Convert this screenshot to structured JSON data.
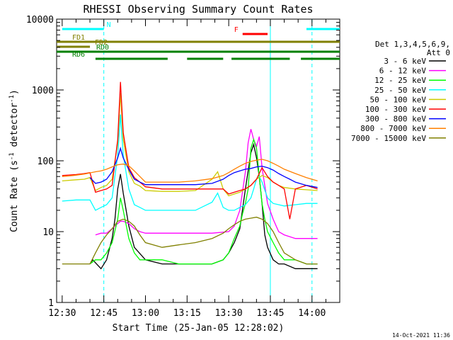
{
  "chart_data": {
    "type": "line",
    "title": "RHESSI Observing Summary Count Rates",
    "xlabel": "Start Time (25-Jan-05 12:28:02)",
    "ylabel": "Count Rate (s",
    "ylabel_sup": "-1",
    "ylabel_mid": " detector",
    "ylabel_end": ")",
    "yscale": "log",
    "ylim": [
      1,
      10000
    ],
    "xlim_minutes": [
      -2,
      100
    ],
    "x_ticks": [
      {
        "label": "12:30",
        "min": 0
      },
      {
        "label": "12:45",
        "min": 15
      },
      {
        "label": "13:00",
        "min": 30
      },
      {
        "label": "13:15",
        "min": 45
      },
      {
        "label": "13:30",
        "min": 60
      },
      {
        "label": "13:45",
        "min": 75
      },
      {
        "label": "14:00",
        "min": 90
      }
    ],
    "y_ticks": [
      {
        "label": "1",
        "value": 1
      },
      {
        "label": "10",
        "value": 10
      },
      {
        "label": "100",
        "value": 100
      },
      {
        "label": "1000",
        "value": 1000
      },
      {
        "label": "10000",
        "value": 10000
      }
    ],
    "legend_title": [
      "Det 1,3,4,5,6,9,",
      "Att 0"
    ],
    "legend_position": "right",
    "series": [
      {
        "name": "3 - 6 keV",
        "color": "#000000",
        "x": [
          10,
          11,
          14,
          16,
          18,
          19,
          20,
          21,
          22,
          24,
          26,
          30,
          36,
          42,
          48,
          54,
          58,
          60,
          62,
          64,
          66,
          68,
          69,
          70,
          71,
          72,
          73,
          74,
          76,
          78,
          80,
          84,
          88,
          92
        ],
        "y": [
          3.5,
          4,
          3,
          4,
          8,
          15,
          40,
          65,
          35,
          12,
          6,
          4,
          3.5,
          3.5,
          3.5,
          3.5,
          4,
          5,
          7,
          11,
          40,
          130,
          170,
          110,
          60,
          25,
          9,
          6,
          4,
          3.5,
          3.5,
          3,
          3,
          3
        ]
      },
      {
        "name": "6 - 12 keV",
        "color": "#ff00ff",
        "x": [
          12,
          14,
          16,
          18,
          20,
          21,
          22,
          24,
          26,
          28,
          30,
          36,
          42,
          48,
          54,
          60,
          62,
          64,
          66,
          67,
          68,
          69,
          70,
          71,
          72,
          74,
          76,
          78,
          80,
          84,
          88,
          92
        ],
        "y": [
          9,
          9.5,
          9.5,
          11,
          13,
          14,
          14,
          13,
          11,
          10,
          9.5,
          9.5,
          9.5,
          9.5,
          9.5,
          10,
          12,
          20,
          70,
          180,
          280,
          200,
          160,
          220,
          80,
          25,
          15,
          10,
          9,
          8,
          8,
          8
        ]
      },
      {
        "name": "12 - 25 keV",
        "color": "#00ff00",
        "x": [
          10,
          12,
          14,
          16,
          18,
          20,
          21,
          22,
          24,
          26,
          28,
          30,
          36,
          42,
          48,
          54,
          58,
          60,
          62,
          64,
          65,
          66,
          67,
          68,
          69,
          70,
          71,
          72,
          73,
          74,
          76,
          78,
          80,
          84,
          88,
          92
        ],
        "y": [
          3.5,
          4,
          4,
          5,
          7,
          15,
          30,
          20,
          8,
          5,
          4,
          4,
          4,
          3.5,
          3.5,
          3.5,
          4,
          5,
          8,
          12,
          18,
          25,
          40,
          150,
          200,
          150,
          60,
          25,
          15,
          10,
          7,
          5,
          4,
          4,
          3.5,
          3.5
        ]
      },
      {
        "name": "25 - 50 keV",
        "color": "#00ffff",
        "x": [
          0,
          5,
          8,
          10,
          12,
          14,
          16,
          18,
          20,
          21,
          22,
          24,
          26,
          28,
          30,
          36,
          42,
          48,
          54,
          56,
          58,
          60,
          62,
          64,
          66,
          68,
          69,
          70,
          71,
          72,
          74,
          76,
          78,
          80,
          84,
          88,
          92
        ],
        "y": [
          27,
          28,
          28,
          28,
          20,
          22,
          24,
          30,
          120,
          450,
          120,
          40,
          24,
          22,
          20,
          20,
          20,
          20,
          26,
          35,
          22,
          20,
          20,
          22,
          24,
          30,
          40,
          55,
          60,
          50,
          30,
          25,
          24,
          23,
          24,
          25,
          25
        ]
      },
      {
        "name": "50 - 100 keV",
        "color": "#cccc00",
        "x": [
          0,
          5,
          8,
          10,
          12,
          14,
          16,
          18,
          20,
          21,
          22,
          24,
          26,
          28,
          30,
          36,
          42,
          48,
          54,
          56,
          58,
          60,
          62,
          64,
          66,
          68,
          70,
          72,
          74,
          76,
          78,
          80,
          84,
          88,
          92
        ],
        "y": [
          52,
          54,
          55,
          58,
          38,
          42,
          45,
          55,
          180,
          900,
          200,
          70,
          48,
          44,
          38,
          37,
          37,
          38,
          55,
          70,
          40,
          32,
          34,
          36,
          40,
          45,
          55,
          62,
          58,
          50,
          45,
          42,
          40,
          39,
          38
        ]
      },
      {
        "name": "100 - 300 keV",
        "color": "#ff0000",
        "x": [
          0,
          5,
          8,
          10,
          12,
          14,
          16,
          18,
          20,
          21,
          22,
          24,
          26,
          28,
          30,
          36,
          42,
          48,
          54,
          56,
          58,
          60,
          62,
          64,
          66,
          68,
          70,
          72,
          74,
          76,
          78,
          80,
          82,
          84,
          88,
          92
        ],
        "y": [
          62,
          64,
          66,
          68,
          36,
          38,
          40,
          45,
          200,
          1300,
          250,
          80,
          58,
          50,
          43,
          40,
          40,
          40,
          40,
          40,
          40,
          34,
          36,
          38,
          40,
          45,
          55,
          80,
          60,
          50,
          45,
          40,
          15,
          40,
          45,
          40
        ]
      },
      {
        "name": "300 - 800 keV",
        "color": "#0000ff",
        "x": [
          10,
          12,
          14,
          16,
          18,
          20,
          21,
          22,
          24,
          26,
          28,
          30,
          36,
          42,
          48,
          54,
          58,
          60,
          62,
          64,
          66,
          68,
          70,
          72,
          74,
          76,
          78,
          80,
          82,
          84,
          88,
          92
        ],
        "y": [
          58,
          48,
          50,
          55,
          70,
          110,
          150,
          110,
          75,
          55,
          50,
          46,
          46,
          46,
          46,
          48,
          55,
          62,
          68,
          72,
          76,
          78,
          82,
          84,
          80,
          74,
          66,
          60,
          55,
          50,
          45,
          42
        ]
      },
      {
        "name": "800 - 7000 keV",
        "color": "#ff8000",
        "x": [
          0,
          4,
          8,
          12,
          14,
          16,
          18,
          20,
          22,
          24,
          26,
          28,
          30,
          36,
          42,
          48,
          54,
          58,
          60,
          62,
          64,
          66,
          68,
          70,
          72,
          74,
          76,
          78,
          80,
          84,
          88,
          92
        ],
        "y": [
          60,
          62,
          65,
          70,
          72,
          76,
          82,
          88,
          90,
          85,
          72,
          60,
          50,
          50,
          50,
          52,
          56,
          62,
          68,
          76,
          84,
          92,
          98,
          102,
          105,
          100,
          92,
          84,
          76,
          66,
          58,
          52
        ]
      },
      {
        "name": "7000 - 15000 keV",
        "color": "#808000",
        "x": [
          0,
          4,
          8,
          10,
          12,
          14,
          16,
          18,
          20,
          22,
          24,
          26,
          28,
          30,
          36,
          42,
          48,
          54,
          58,
          60,
          62,
          64,
          66,
          68,
          70,
          72,
          74,
          76,
          78,
          80,
          84,
          88,
          92
        ],
        "y": [
          3.5,
          3.5,
          3.5,
          3.5,
          5,
          7,
          9,
          11,
          14,
          15,
          14,
          12,
          9,
          7,
          6,
          6.5,
          7,
          8,
          9.5,
          11,
          12.5,
          14,
          15,
          15.5,
          16,
          15,
          13,
          10,
          7,
          5,
          4,
          3.5,
          3.5
        ]
      }
    ],
    "annotations": [
      {
        "label": "N",
        "color": "#00ffff",
        "segments": [
          [
            0,
            15
          ],
          [
            88,
            100
          ]
        ]
      },
      {
        "label": "F",
        "color": "#ff0000",
        "segments": [
          [
            65,
            74
          ]
        ]
      },
      {
        "label": "FD1",
        "color": "#808000",
        "segments": [
          [
            -2,
            100
          ]
        ]
      },
      {
        "label": "FD2",
        "color": "#808000",
        "segments": [
          [
            -2,
            10
          ]
        ]
      },
      {
        "label": "RD0",
        "color": "#008000",
        "segments": [
          [
            -2,
            100
          ]
        ]
      },
      {
        "label": "RD6",
        "color": "#008000",
        "segments": [
          [
            12,
            38
          ],
          [
            45,
            58
          ],
          [
            61,
            82
          ],
          [
            86,
            100
          ]
        ]
      }
    ],
    "vertical_lines": [
      {
        "min": 15,
        "color": "#00ffff",
        "style": "dashed"
      },
      {
        "min": 75,
        "color": "#00ffff",
        "style": "solid"
      },
      {
        "min": 90,
        "color": "#00ffff",
        "style": "dashed"
      }
    ],
    "footer": "14-Oct-2021 11:36"
  }
}
